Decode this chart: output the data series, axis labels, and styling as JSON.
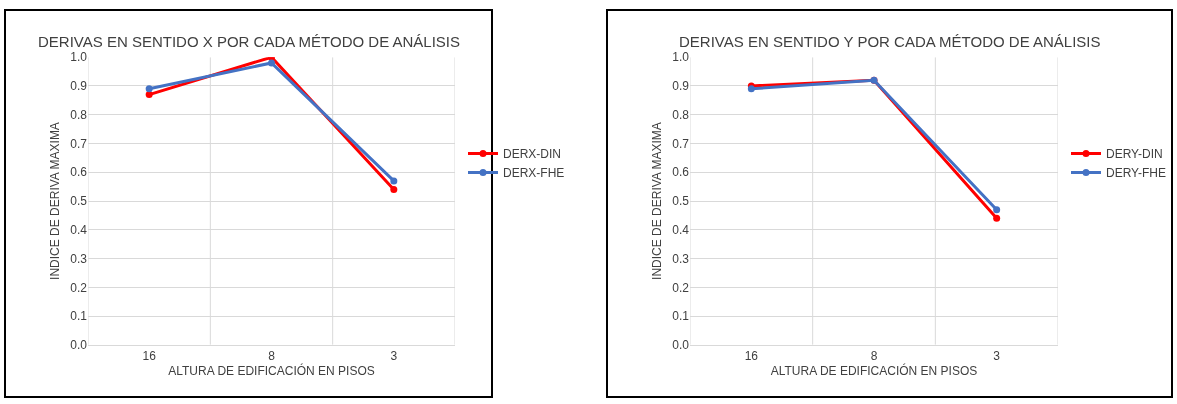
{
  "chart_data": [
    {
      "type": "line",
      "title": "DERIVAS EN SENTIDO X POR CADA MÉTODO DE ANÁLISIS",
      "xlabel": "ALTURA DE EDIFICACIÓN EN PISOS",
      "ylabel": "INDICE DE DERIVA MAXIMA",
      "categories": [
        "16",
        "8",
        "3"
      ],
      "ylim": [
        0,
        1
      ],
      "yticks": [
        "0.0",
        0.1,
        0.2,
        0.3,
        0.4,
        0.5,
        0.6,
        0.7,
        0.8,
        0.9,
        "1.0"
      ],
      "grid": true,
      "legend": "right",
      "marker": "circle",
      "line_style": "solid",
      "series": [
        {
          "name": "DERX-DIN",
          "color": "#ff0000",
          "values": [
            0.87,
            1.0,
            0.54
          ]
        },
        {
          "name": "DERX-FHE",
          "color": "#4472c4",
          "values": [
            0.89,
            0.98,
            0.57
          ]
        }
      ]
    },
    {
      "type": "line",
      "title": "DERIVAS EN SENTIDO Y POR CADA MÉTODO DE ANÁLISIS",
      "xlabel": "ALTURA DE EDIFICACIÓN EN PISOS",
      "ylabel": "INDICE DE DERIVA MAXIMA",
      "categories": [
        "16",
        "8",
        "3"
      ],
      "ylim": [
        0,
        1
      ],
      "yticks": [
        "0.0",
        0.1,
        0.2,
        0.3,
        0.4,
        0.5,
        0.6,
        0.7,
        0.8,
        0.9,
        "1.0"
      ],
      "grid": true,
      "legend": "right",
      "marker": "circle",
      "line_style": "solid",
      "series": [
        {
          "name": "DERY-DIN",
          "color": "#ff0000",
          "values": [
            0.9,
            0.92,
            0.44
          ]
        },
        {
          "name": "DERY-FHE",
          "color": "#4472c4",
          "values": [
            0.89,
            0.92,
            0.47
          ]
        }
      ]
    }
  ]
}
